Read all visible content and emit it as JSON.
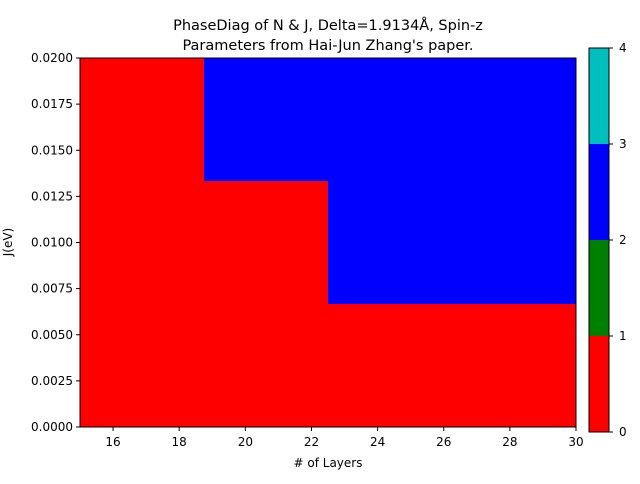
{
  "chart_data": {
    "type": "heatmap",
    "title_line1": "PhaseDiag of N & J, Delta=1.9134Å, Spin-z",
    "title_line2": "Parameters from Hai-Jun Zhang's paper.",
    "xlabel": "# of Layers",
    "ylabel": "J(eV)",
    "xlim": [
      15,
      30
    ],
    "ylim": [
      0,
      0.02
    ],
    "xticks": [
      16,
      18,
      20,
      22,
      24,
      26,
      28,
      30
    ],
    "xtick_labels": [
      "16",
      "18",
      "20",
      "22",
      "24",
      "26",
      "28",
      "30"
    ],
    "yticks": [
      0,
      0.0025,
      0.005,
      0.0075,
      0.01,
      0.0125,
      0.015,
      0.0175,
      0.02
    ],
    "ytick_labels": [
      "0.0000",
      "0.0025",
      "0.0050",
      "0.0075",
      "0.0100",
      "0.0125",
      "0.0150",
      "0.0175",
      "0.0200"
    ],
    "regions": [
      {
        "x0": 15,
        "x1": 30,
        "y0": 0,
        "y1": 0.02,
        "phase": 0
      },
      {
        "x0": 18.75,
        "x1": 30,
        "y0": 0.01333,
        "y1": 0.02,
        "phase": 2
      },
      {
        "x0": 22.5,
        "x1": 30,
        "y0": 0.00667,
        "y1": 0.02,
        "phase": 2
      }
    ],
    "colorbar": {
      "range": [
        0,
        4
      ],
      "ticks": [
        "0",
        "1",
        "2",
        "3",
        "4"
      ],
      "bands": [
        {
          "from": 0,
          "to": 1,
          "color": "#ff0000"
        },
        {
          "from": 1,
          "to": 2,
          "color": "#008000"
        },
        {
          "from": 2,
          "to": 3,
          "color": "#0000ff"
        },
        {
          "from": 3,
          "to": 4,
          "color": "#00bfbf"
        }
      ]
    },
    "phase_colors": [
      "#ff0000",
      "#008000",
      "#0000ff",
      "#00bfbf"
    ]
  }
}
